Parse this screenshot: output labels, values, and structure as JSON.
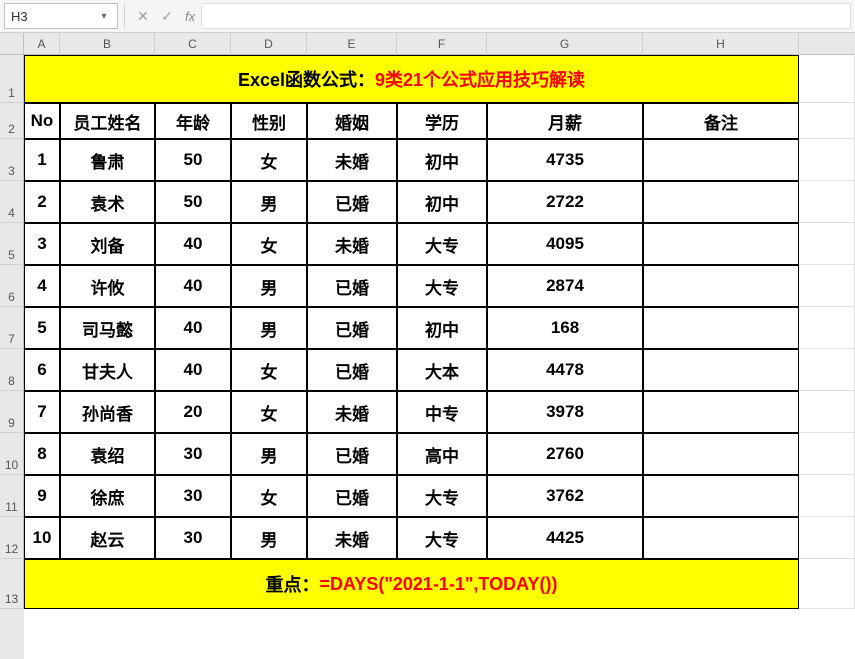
{
  "cellRef": "H3",
  "title": {
    "prefix": "Excel函数公式：",
    "suffix": "9类21个公式应用技巧解读"
  },
  "columns": {
    "A": 36,
    "B": 95,
    "C": 76,
    "D": 76,
    "E": 90,
    "F": 90,
    "G": 156,
    "H": 156
  },
  "headers": [
    "No",
    "员工姓名",
    "年龄",
    "性别",
    "婚姻",
    "学历",
    "月薪",
    "备注"
  ],
  "rows": [
    {
      "no": "1",
      "name": "鲁肃",
      "age": "50",
      "sex": "女",
      "mar": "未婚",
      "edu": "初中",
      "sal": "4735",
      "note": ""
    },
    {
      "no": "2",
      "name": "袁术",
      "age": "50",
      "sex": "男",
      "mar": "已婚",
      "edu": "初中",
      "sal": "2722",
      "note": ""
    },
    {
      "no": "3",
      "name": "刘备",
      "age": "40",
      "sex": "女",
      "mar": "未婚",
      "edu": "大专",
      "sal": "4095",
      "note": ""
    },
    {
      "no": "4",
      "name": "许攸",
      "age": "40",
      "sex": "男",
      "mar": "已婚",
      "edu": "大专",
      "sal": "2874",
      "note": ""
    },
    {
      "no": "5",
      "name": "司马懿",
      "age": "40",
      "sex": "男",
      "mar": "已婚",
      "edu": "初中",
      "sal": "168",
      "note": ""
    },
    {
      "no": "6",
      "name": "甘夫人",
      "age": "40",
      "sex": "女",
      "mar": "已婚",
      "edu": "大本",
      "sal": "4478",
      "note": ""
    },
    {
      "no": "7",
      "name": "孙尚香",
      "age": "20",
      "sex": "女",
      "mar": "未婚",
      "edu": "中专",
      "sal": "3978",
      "note": ""
    },
    {
      "no": "8",
      "name": "袁绍",
      "age": "30",
      "sex": "男",
      "mar": "已婚",
      "edu": "高中",
      "sal": "2760",
      "note": ""
    },
    {
      "no": "9",
      "name": "徐庶",
      "age": "30",
      "sex": "女",
      "mar": "已婚",
      "edu": "大专",
      "sal": "3762",
      "note": ""
    },
    {
      "no": "10",
      "name": "赵云",
      "age": "30",
      "sex": "男",
      "mar": "未婚",
      "edu": "大专",
      "sal": "4425",
      "note": ""
    }
  ],
  "footer": {
    "prefix": "重点：",
    "formula": "=DAYS(\"2021-1-1\",TODAY())"
  },
  "rowHeights": {
    "title": 48,
    "header": 36,
    "data": 42,
    "footer": 50
  },
  "colors": {
    "highlight": "#ffff00",
    "accent": "#ff0000",
    "border": "#000000",
    "gridBg": "#ffffff",
    "headerBg": "#e8e8e8"
  },
  "fx": "fx"
}
